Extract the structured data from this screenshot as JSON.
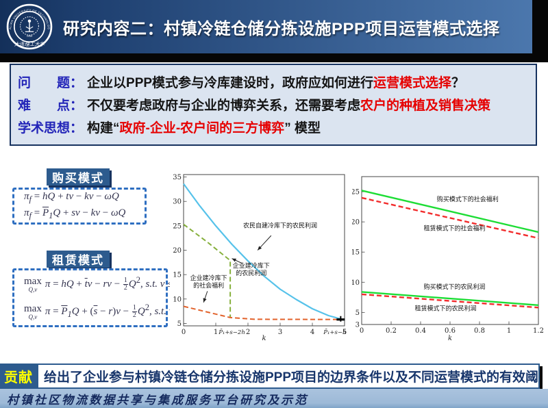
{
  "header": {
    "title": "研究内容二：村镇冷链仓储分拣设施PPP项目运营模式选择",
    "logo_arc_text": "DALIAN UNIVERSITY OF TECHNOLOGY",
    "logo_cn_text": "大连理工大学",
    "logo_year": "1949"
  },
  "qa": {
    "rows": [
      {
        "label": "问　　题：",
        "segments": [
          {
            "t": "企业以PPP模式参与冷库建设时，政府应如何进行"
          },
          {
            "t": "运营模式选择",
            "red": true
          },
          {
            "t": "？"
          }
        ]
      },
      {
        "label": "难　　点：",
        "segments": [
          {
            "t": "不仅要考虑政府与企业的博弈关系，还需要考虑"
          },
          {
            "t": "农户的种植及销售决策",
            "red": true
          },
          {
            "t": ""
          }
        ]
      },
      {
        "label": "学术思想：",
        "segments": [
          {
            "t": "构建“"
          },
          {
            "t": "政府-企业-农户间的三方博弈",
            "red": true
          },
          {
            "t": "” 模型"
          }
        ]
      }
    ]
  },
  "modes": [
    {
      "title": "购买模式",
      "formulas": [
        "<i>π<sub>f</sub></i> = <i>hQ</i> + <i>tv</i> − <i>kv</i> − <i>ωQ</i>",
        "<i>π<sub>f</sub></i> = <i><span class='bar'>P</span><sub>1</sub>Q</i> + <i>sv</i> − <i>kv</i> − <i>ωQ</i>"
      ]
    },
    {
      "title": "租赁模式",
      "formulas": [
        "<span class='mx'><span>max</span><span class='mxs'>Q,v</span></span><i>π</i> = <i>hQ</i> + <i><span class='bar'>t</span>v</i> − <i>rv</i> − <span class='frac'><span>1</span><span>2</span></span><i>Q</i><sup>2</sup>, <i>s.t.</i> <i>v</i> ≤ <i>Q</i>",
        "<span class='mx'><span>max</span><span class='mxs'>Q,v</span></span><i>π</i> = <i><span class='bar'>P</span><sub>1</sub>Q</i> + (<i><span class='bar'>s</span></i> − <i>r</i>)<i>v</i> − <span class='frac'><span>1</span><span>2</span></span><i>Q</i><sup>2</sup>, <i>s.t.</i> <i>v</i> ≤ <i>Q</i>"
      ]
    }
  ],
  "contribution": {
    "label": "贡献",
    "text": "给出了企业参与村镇冷链仓储分拣设施PPP项目的边界条件以及不同运营模式的有效阈"
  },
  "footer": {
    "text": "村镇社区物流数据共享与集成服务平台研究及示范"
  },
  "colors": {
    "header_dark": "#14305a",
    "header_light": "#4d79af",
    "accent_blue": "#2d5b8e",
    "label_blue": "#2224b8",
    "highlight_red": "#e60000",
    "dash_border": "#2f6fc1",
    "contrib_yellow": "#fdfd00",
    "footer_bg": "#9db9d7"
  },
  "chart_data": [
    {
      "type": "line",
      "xlabel": "k",
      "xlim": [
        0,
        5
      ],
      "ylim": [
        4.5,
        35.5
      ],
      "grid": false,
      "legend": "none (inline annotations)",
      "xticks": [
        {
          "v": 0,
          "label": "0"
        },
        {
          "v": 1,
          "label": "1"
        },
        {
          "v": 1.5,
          "label": "P̄₁+s−2h",
          "minor": true
        },
        {
          "v": 2,
          "label": "2"
        },
        {
          "v": 3,
          "label": "3"
        },
        {
          "v": 4,
          "label": "4"
        },
        {
          "v": 4.7,
          "label": "P̄₁+s−h",
          "minor": true
        },
        {
          "v": 5,
          "label": "5"
        }
      ],
      "yticks": [
        5,
        10,
        15,
        20,
        25,
        30,
        35
      ],
      "series": [
        {
          "name": "农民自建冷库下的农民利润",
          "color": "#56c2ea",
          "dash": false,
          "width": 2.2,
          "points": [
            [
              0,
              33.6
            ],
            [
              0.5,
              29.1
            ],
            [
              1,
              25.0
            ],
            [
              1.5,
              21.2
            ],
            [
              2,
              17.8
            ],
            [
              2.5,
              14.7
            ],
            [
              3,
              12.0
            ],
            [
              3.5,
              9.9
            ],
            [
              4,
              8.0
            ],
            [
              4.5,
              6.6
            ],
            [
              5,
              5.7
            ]
          ]
        },
        {
          "name": "企业建冷库下的农民利润",
          "color": "#86b03c",
          "dash": true,
          "width": 2,
          "points": [
            [
              0,
              25.3
            ],
            [
              0.75,
              21.6
            ],
            [
              1.45,
              17.9
            ],
            [
              1.45,
              6.2
            ]
          ]
        },
        {
          "name": "企业建冷库下的社会福利",
          "color": "#e2622b",
          "dash": true,
          "width": 2,
          "points": [
            [
              0,
              8.5
            ],
            [
              1.45,
              6.2
            ],
            [
              2.2,
              5.85
            ],
            [
              5,
              5.8
            ]
          ]
        }
      ],
      "annotations": [
        {
          "lines": [
            "农民自建冷库下的农民利润"
          ],
          "x": 3.0,
          "y": 24.6,
          "arrow": {
            "x1": 2.72,
            "y1": 23.0,
            "x2": 2.3,
            "y2": 20.0
          }
        },
        {
          "lines": [
            "企业建冷库下",
            "的农民利润"
          ],
          "x": 2.1,
          "y": 16.4,
          "arrow": {
            "x1": 1.82,
            "y1": 17.3,
            "x2": 1.5,
            "y2": 18.3
          }
        },
        {
          "lines": [
            "企业建冷库下",
            "的社会福利"
          ],
          "x": 0.78,
          "y": 13.9,
          "arrow": {
            "x1": 0.74,
            "y1": 11.6,
            "x2": 0.62,
            "y2": 9.3
          }
        }
      ],
      "end_marker": {
        "x": 4.88,
        "y": 5.8
      }
    },
    {
      "type": "line",
      "xlabel": "k",
      "xlim": [
        0,
        1.2
      ],
      "ylim": [
        3,
        27.5
      ],
      "grid": false,
      "legend": "none (inline annotations)",
      "xticks": [
        {
          "v": 0,
          "label": "0"
        },
        {
          "v": 0.2,
          "label": "0.2"
        },
        {
          "v": 0.4,
          "label": "0.4"
        },
        {
          "v": 0.6,
          "label": "0.6"
        },
        {
          "v": 0.8,
          "label": "0.8"
        },
        {
          "v": 1,
          "label": "1"
        },
        {
          "v": 1.2,
          "label": "1.2"
        }
      ],
      "yticks": [
        3,
        5,
        10,
        15,
        20,
        25
      ],
      "series": [
        {
          "name": "购买模式下的社会福利",
          "color": "#1ddd35",
          "dash": false,
          "width": 2.4,
          "points": [
            [
              0,
              25.2
            ],
            [
              1.2,
              18.3
            ]
          ]
        },
        {
          "name": "租赁模式下的社会福利",
          "color": "#f22c2c",
          "dash": true,
          "width": 2.4,
          "points": [
            [
              0,
              24.0
            ],
            [
              1.2,
              17.3
            ]
          ]
        },
        {
          "name": "购买模式下的农民利润",
          "color": "#1ddd35",
          "dash": false,
          "width": 2.4,
          "points": [
            [
              0,
              8.4
            ],
            [
              1.2,
              6.2
            ]
          ]
        },
        {
          "name": "租赁模式下的农民利润",
          "color": "#f22c2c",
          "dash": true,
          "width": 2.4,
          "points": [
            [
              0,
              8.0
            ],
            [
              1.2,
              5.8
            ]
          ]
        }
      ],
      "annotations": [
        {
          "lines": [
            "购买模式下的社会福利"
          ],
          "x": 0.72,
          "y": 23.4
        },
        {
          "lines": [
            "租赁模式下的社会福利"
          ],
          "x": 0.63,
          "y": 18.6
        },
        {
          "lines": [
            "购买模式下的农民利润"
          ],
          "x": 0.63,
          "y": 8.9
        },
        {
          "lines": [
            "租赁模式下的农民利润"
          ],
          "x": 0.57,
          "y": 5.3
        }
      ]
    }
  ]
}
